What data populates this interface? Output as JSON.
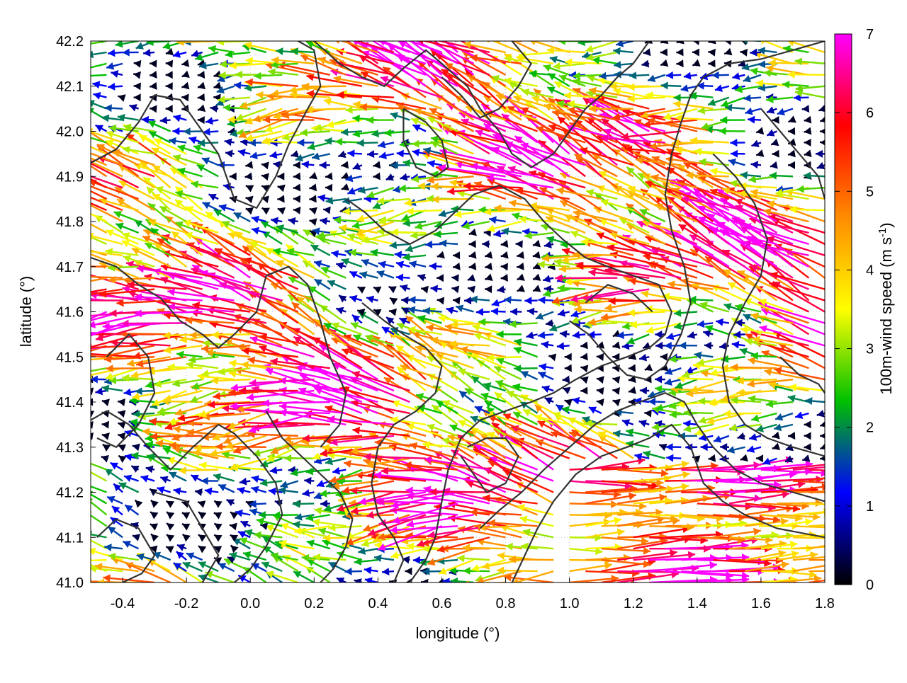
{
  "chart_data": {
    "type": "vector-field",
    "title": "",
    "xlabel": "longitude (°)",
    "ylabel": "latitude (°)",
    "xlim": [
      -0.5,
      1.8
    ],
    "ylim": [
      41.0,
      42.2
    ],
    "xticks": [
      -0.4,
      -0.2,
      0.0,
      0.2,
      0.4,
      0.6,
      0.8,
      1.0,
      1.2,
      1.4,
      1.6,
      1.8
    ],
    "xtick_labels": [
      "-0.4",
      "-0.2",
      "0.0",
      "0.2",
      "0.4",
      "0.6",
      "0.8",
      "1.0",
      "1.2",
      "1.4",
      "1.6",
      "1.8"
    ],
    "yticks": [
      41.0,
      41.1,
      41.2,
      41.3,
      41.4,
      41.5,
      41.6,
      41.7,
      41.8,
      41.9,
      42.0,
      42.1,
      42.2
    ],
    "ytick_labels": [
      "41.0",
      "41.1",
      "41.2",
      "41.3",
      "41.4",
      "41.5",
      "41.6",
      "41.7",
      "41.8",
      "41.9",
      "42.0",
      "42.1",
      "42.2"
    ],
    "grid": true,
    "colorbar": {
      "label_main": "100m-wind speed (m s",
      "label_sup": "-1",
      "label_close": ")",
      "range": [
        0,
        7
      ],
      "ticks": [
        0,
        1,
        2,
        3,
        4,
        5,
        6,
        7
      ],
      "tick_labels": [
        "0",
        "1",
        "2",
        "3",
        "4",
        "5",
        "6",
        "7"
      ],
      "palette": [
        "#000000",
        "#0000ff",
        "#00c000",
        "#ffff00",
        "#ff8c00",
        "#ff0000",
        "#ff00ff"
      ]
    },
    "contour_color": "#333333",
    "contours": [
      [
        [
          -0.5,
          41.93
        ],
        [
          -0.42,
          41.96
        ],
        [
          -0.35,
          42.02
        ],
        [
          -0.3,
          42.08
        ],
        [
          -0.22,
          42.07
        ],
        [
          -0.15,
          42.0
        ],
        [
          -0.1,
          41.95
        ],
        [
          -0.05,
          41.85
        ],
        [
          0.02,
          41.83
        ],
        [
          0.08,
          41.9
        ],
        [
          0.12,
          41.97
        ],
        [
          0.18,
          42.05
        ],
        [
          0.22,
          42.1
        ],
        [
          0.2,
          42.18
        ],
        [
          0.15,
          42.2
        ]
      ],
      [
        [
          -0.5,
          41.72
        ],
        [
          -0.42,
          41.7
        ],
        [
          -0.35,
          41.66
        ],
        [
          -0.28,
          41.63
        ],
        [
          -0.22,
          41.58
        ],
        [
          -0.15,
          41.55
        ],
        [
          -0.1,
          41.52
        ],
        [
          -0.05,
          41.55
        ],
        [
          0.02,
          41.6
        ],
        [
          0.05,
          41.68
        ],
        [
          0.12,
          41.7
        ],
        [
          0.18,
          41.66
        ],
        [
          0.22,
          41.58
        ],
        [
          0.25,
          41.5
        ],
        [
          0.3,
          41.42
        ],
        [
          0.28,
          41.35
        ],
        [
          0.22,
          41.3
        ]
      ],
      [
        [
          -0.45,
          41.5
        ],
        [
          -0.38,
          41.55
        ],
        [
          -0.32,
          41.5
        ],
        [
          -0.3,
          41.42
        ],
        [
          -0.35,
          41.35
        ],
        [
          -0.42,
          41.3
        ],
        [
          -0.48,
          41.32
        ]
      ],
      [
        [
          -0.5,
          41.36
        ],
        [
          -0.45,
          41.38
        ],
        [
          -0.38,
          41.35
        ],
        [
          -0.32,
          41.3
        ],
        [
          -0.25,
          41.25
        ],
        [
          -0.18,
          41.3
        ],
        [
          -0.1,
          41.35
        ],
        [
          -0.05,
          41.33
        ],
        [
          0.02,
          41.28
        ],
        [
          0.08,
          41.22
        ],
        [
          0.1,
          41.15
        ],
        [
          0.05,
          41.08
        ],
        [
          0.0,
          41.03
        ],
        [
          -0.05,
          41.0
        ]
      ],
      [
        [
          -0.3,
          41.2
        ],
        [
          -0.2,
          41.18
        ],
        [
          -0.15,
          41.12
        ],
        [
          -0.1,
          41.06
        ],
        [
          -0.15,
          41.0
        ]
      ],
      [
        [
          0.2,
          42.2
        ],
        [
          0.28,
          42.15
        ],
        [
          0.35,
          42.12
        ],
        [
          0.42,
          42.1
        ],
        [
          0.48,
          42.14
        ],
        [
          0.55,
          42.18
        ],
        [
          0.6,
          42.15
        ],
        [
          0.68,
          42.1
        ],
        [
          0.72,
          42.05
        ],
        [
          0.78,
          42.0
        ],
        [
          0.82,
          41.95
        ],
        [
          0.88,
          41.92
        ],
        [
          0.95,
          41.95
        ],
        [
          1.0,
          42.0
        ],
        [
          1.05,
          42.05
        ],
        [
          1.1,
          42.08
        ],
        [
          1.15,
          42.12
        ],
        [
          1.2,
          42.15
        ],
        [
          1.25,
          42.2
        ]
      ],
      [
        [
          0.6,
          42.12
        ],
        [
          0.66,
          42.08
        ],
        [
          0.72,
          42.03
        ],
        [
          0.78,
          42.05
        ],
        [
          0.84,
          42.1
        ],
        [
          0.88,
          42.15
        ],
        [
          0.82,
          42.2
        ]
      ],
      [
        [
          0.3,
          41.85
        ],
        [
          0.36,
          41.82
        ],
        [
          0.42,
          41.78
        ],
        [
          0.5,
          41.75
        ],
        [
          0.58,
          41.78
        ],
        [
          0.64,
          41.82
        ],
        [
          0.7,
          41.86
        ],
        [
          0.78,
          41.88
        ],
        [
          0.86,
          41.85
        ],
        [
          0.92,
          41.8
        ],
        [
          0.98,
          41.76
        ],
        [
          1.05,
          41.72
        ],
        [
          1.12,
          41.7
        ],
        [
          1.2,
          41.68
        ],
        [
          1.28,
          41.66
        ],
        [
          1.32,
          41.6
        ],
        [
          1.3,
          41.55
        ],
        [
          1.25,
          41.52
        ],
        [
          1.18,
          41.5
        ],
        [
          1.1,
          41.48
        ],
        [
          1.02,
          41.45
        ],
        [
          0.95,
          41.42
        ],
        [
          0.88,
          41.4
        ],
        [
          0.8,
          41.38
        ],
        [
          0.72,
          41.36
        ],
        [
          0.66,
          41.32
        ],
        [
          0.62,
          41.25
        ],
        [
          0.6,
          41.18
        ],
        [
          0.58,
          41.1
        ],
        [
          0.55,
          41.05
        ],
        [
          0.5,
          41.0
        ]
      ],
      [
        [
          0.35,
          41.62
        ],
        [
          0.42,
          41.58
        ],
        [
          0.48,
          41.55
        ],
        [
          0.55,
          41.52
        ],
        [
          0.6,
          41.48
        ],
        [
          0.58,
          41.42
        ],
        [
          0.52,
          41.38
        ],
        [
          0.45,
          41.35
        ],
        [
          0.4,
          41.3
        ],
        [
          0.38,
          41.22
        ],
        [
          0.4,
          41.15
        ],
        [
          0.45,
          41.1
        ],
        [
          0.48,
          41.05
        ],
        [
          0.45,
          41.0
        ]
      ],
      [
        [
          0.72,
          41.12
        ],
        [
          0.78,
          41.16
        ],
        [
          0.85,
          41.2
        ],
        [
          0.92,
          41.25
        ],
        [
          1.0,
          41.3
        ],
        [
          1.08,
          41.35
        ],
        [
          1.15,
          41.38
        ],
        [
          1.22,
          41.4
        ],
        [
          1.3,
          41.42
        ],
        [
          1.36,
          41.4
        ],
        [
          1.4,
          41.35
        ],
        [
          1.45,
          41.3
        ],
        [
          1.52,
          41.25
        ],
        [
          1.6,
          41.22
        ],
        [
          1.7,
          41.2
        ],
        [
          1.8,
          41.18
        ]
      ],
      [
        [
          0.82,
          41.0
        ],
        [
          0.86,
          41.06
        ],
        [
          0.9,
          41.12
        ],
        [
          0.95,
          41.18
        ],
        [
          1.02,
          41.24
        ],
        [
          1.1,
          41.28
        ],
        [
          1.18,
          41.3
        ],
        [
          1.25,
          41.32
        ],
        [
          1.32,
          41.35
        ],
        [
          1.38,
          41.3
        ],
        [
          1.42,
          41.22
        ],
        [
          1.48,
          41.18
        ],
        [
          1.55,
          41.15
        ],
        [
          1.65,
          41.12
        ],
        [
          1.8,
          41.1
        ]
      ],
      [
        [
          1.0,
          41.58
        ],
        [
          1.06,
          41.55
        ],
        [
          1.12,
          41.5
        ],
        [
          1.18,
          41.46
        ],
        [
          1.24,
          41.45
        ],
        [
          1.3,
          41.48
        ],
        [
          1.35,
          41.55
        ],
        [
          1.38,
          41.62
        ],
        [
          1.36,
          41.7
        ],
        [
          1.32,
          41.78
        ],
        [
          1.3,
          41.86
        ],
        [
          1.32,
          41.95
        ],
        [
          1.35,
          42.02
        ],
        [
          1.38,
          42.08
        ],
        [
          1.42,
          42.12
        ],
        [
          1.5,
          42.15
        ],
        [
          1.6,
          42.16
        ],
        [
          1.7,
          42.18
        ],
        [
          1.8,
          42.2
        ]
      ],
      [
        [
          1.45,
          41.95
        ],
        [
          1.52,
          41.9
        ],
        [
          1.58,
          41.84
        ],
        [
          1.62,
          41.76
        ],
        [
          1.6,
          41.68
        ],
        [
          1.55,
          41.62
        ],
        [
          1.5,
          41.55
        ],
        [
          1.48,
          41.48
        ],
        [
          1.5,
          41.4
        ],
        [
          1.55,
          41.35
        ],
        [
          1.62,
          41.32
        ],
        [
          1.7,
          41.3
        ],
        [
          1.8,
          41.28
        ]
      ],
      [
        [
          1.6,
          42.05
        ],
        [
          1.66,
          42.0
        ],
        [
          1.72,
          41.95
        ],
        [
          1.78,
          41.9
        ],
        [
          1.8,
          41.85
        ]
      ],
      [
        [
          0.05,
          41.38
        ],
        [
          0.1,
          41.32
        ],
        [
          0.16,
          41.28
        ],
        [
          0.22,
          41.24
        ],
        [
          0.28,
          41.2
        ],
        [
          0.32,
          41.14
        ],
        [
          0.3,
          41.08
        ],
        [
          0.26,
          41.03
        ],
        [
          0.22,
          41.0
        ]
      ],
      [
        [
          0.66,
          41.28
        ],
        [
          0.7,
          41.24
        ],
        [
          0.74,
          41.2
        ],
        [
          0.8,
          41.22
        ],
        [
          0.84,
          41.28
        ],
        [
          0.8,
          41.32
        ],
        [
          0.74,
          41.32
        ],
        [
          0.68,
          41.3
        ]
      ],
      [
        [
          1.05,
          41.62
        ],
        [
          1.12,
          41.66
        ],
        [
          1.2,
          41.64
        ],
        [
          1.26,
          41.6
        ]
      ],
      [
        [
          -0.48,
          41.1
        ],
        [
          -0.42,
          41.14
        ],
        [
          -0.35,
          41.12
        ],
        [
          -0.3,
          41.06
        ],
        [
          -0.34,
          41.02
        ],
        [
          -0.4,
          41.0
        ]
      ],
      [
        [
          1.66,
          41.5
        ],
        [
          1.72,
          41.46
        ],
        [
          1.78,
          41.44
        ],
        [
          1.8,
          41.42
        ]
      ],
      [
        [
          0.48,
          42.05
        ],
        [
          0.55,
          42.02
        ],
        [
          0.6,
          41.98
        ],
        [
          0.62,
          41.92
        ],
        [
          0.58,
          41.9
        ],
        [
          0.52,
          41.92
        ],
        [
          0.48,
          41.98
        ],
        [
          0.48,
          42.05
        ]
      ]
    ]
  }
}
